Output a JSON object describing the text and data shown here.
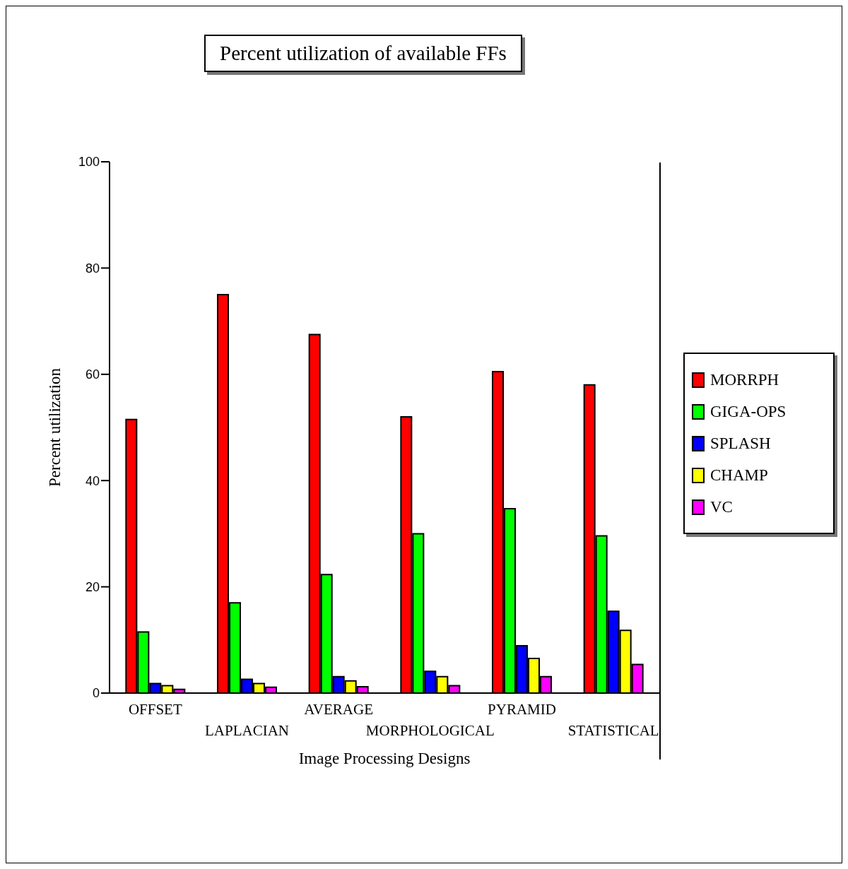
{
  "chart_data": {
    "type": "bar",
    "title": "Percent utilization of available FFs",
    "xlabel": "Image Processing Designs",
    "ylabel": "Percent utilization",
    "categories": [
      "OFFSET",
      "LAPLACIAN",
      "AVERAGE",
      "MORPHOLOGICAL",
      "PYRAMID",
      "STATISTICAL"
    ],
    "series": [
      {
        "name": "MORRPH",
        "color": "#ff0000",
        "values": [
          51.5,
          75,
          67.5,
          52,
          60.5,
          58
        ]
      },
      {
        "name": "GIGA-OPS",
        "color": "#00ff00",
        "values": [
          11.5,
          17,
          22.3,
          30,
          34.7,
          29.6
        ]
      },
      {
        "name": "SPLASH",
        "color": "#0000ff",
        "values": [
          1.8,
          2.6,
          3.1,
          4.1,
          8.9,
          15.4
        ]
      },
      {
        "name": "CHAMP",
        "color": "#ffff00",
        "values": [
          1.4,
          1.8,
          2.3,
          3.1,
          6.5,
          11.8
        ]
      },
      {
        "name": "VC",
        "color": "#ff00ff",
        "values": [
          0.7,
          1.1,
          1.2,
          1.4,
          3.1,
          5.4
        ]
      }
    ],
    "ylim": [
      0,
      100
    ],
    "yticks": [
      0,
      20,
      40,
      60,
      80,
      100
    ],
    "grid": false,
    "legend": "right"
  }
}
